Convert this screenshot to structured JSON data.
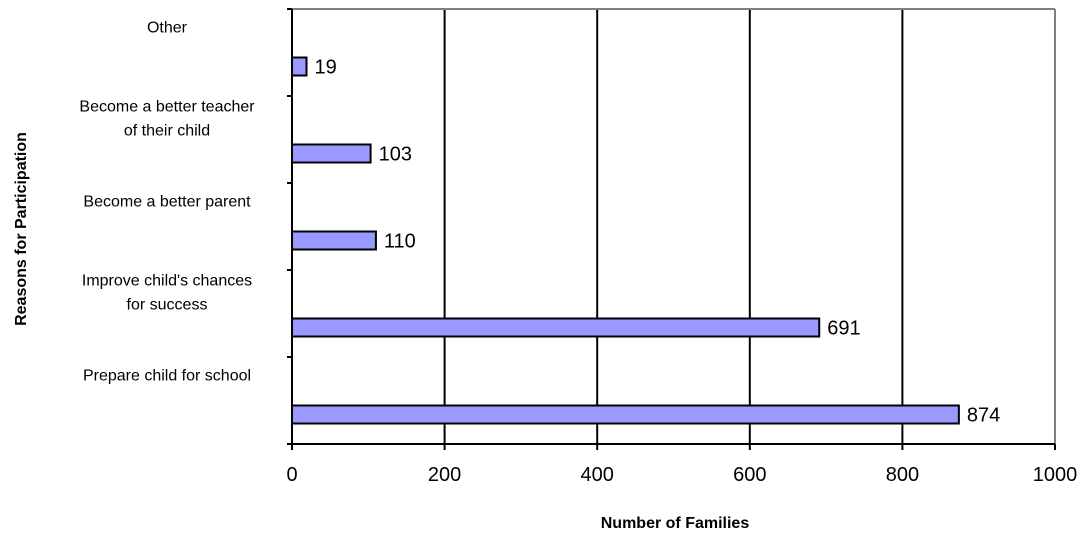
{
  "chart_data": {
    "type": "bar",
    "orientation": "horizontal",
    "title": "",
    "xlabel": "Number of Families",
    "ylabel": "Reasons for Participation",
    "xlim": [
      0,
      1000
    ],
    "xticks": [
      0,
      200,
      400,
      600,
      800,
      1000
    ],
    "grid": "vertical major gridlines",
    "legend": "none",
    "bar_color": "#9999ff",
    "bar_edge_color": "#000000",
    "categories": [
      {
        "lines": [
          "Prepare child for school"
        ]
      },
      {
        "lines": [
          "Improve child's chances",
          "for success"
        ]
      },
      {
        "lines": [
          "Become a better parent"
        ]
      },
      {
        "lines": [
          "Become a better teacher",
          "of their child"
        ]
      },
      {
        "lines": [
          "Other"
        ]
      }
    ],
    "values": [
      874,
      691,
      110,
      103,
      19
    ],
    "value_labels": [
      "874",
      "691",
      "110",
      "103",
      "19"
    ]
  }
}
